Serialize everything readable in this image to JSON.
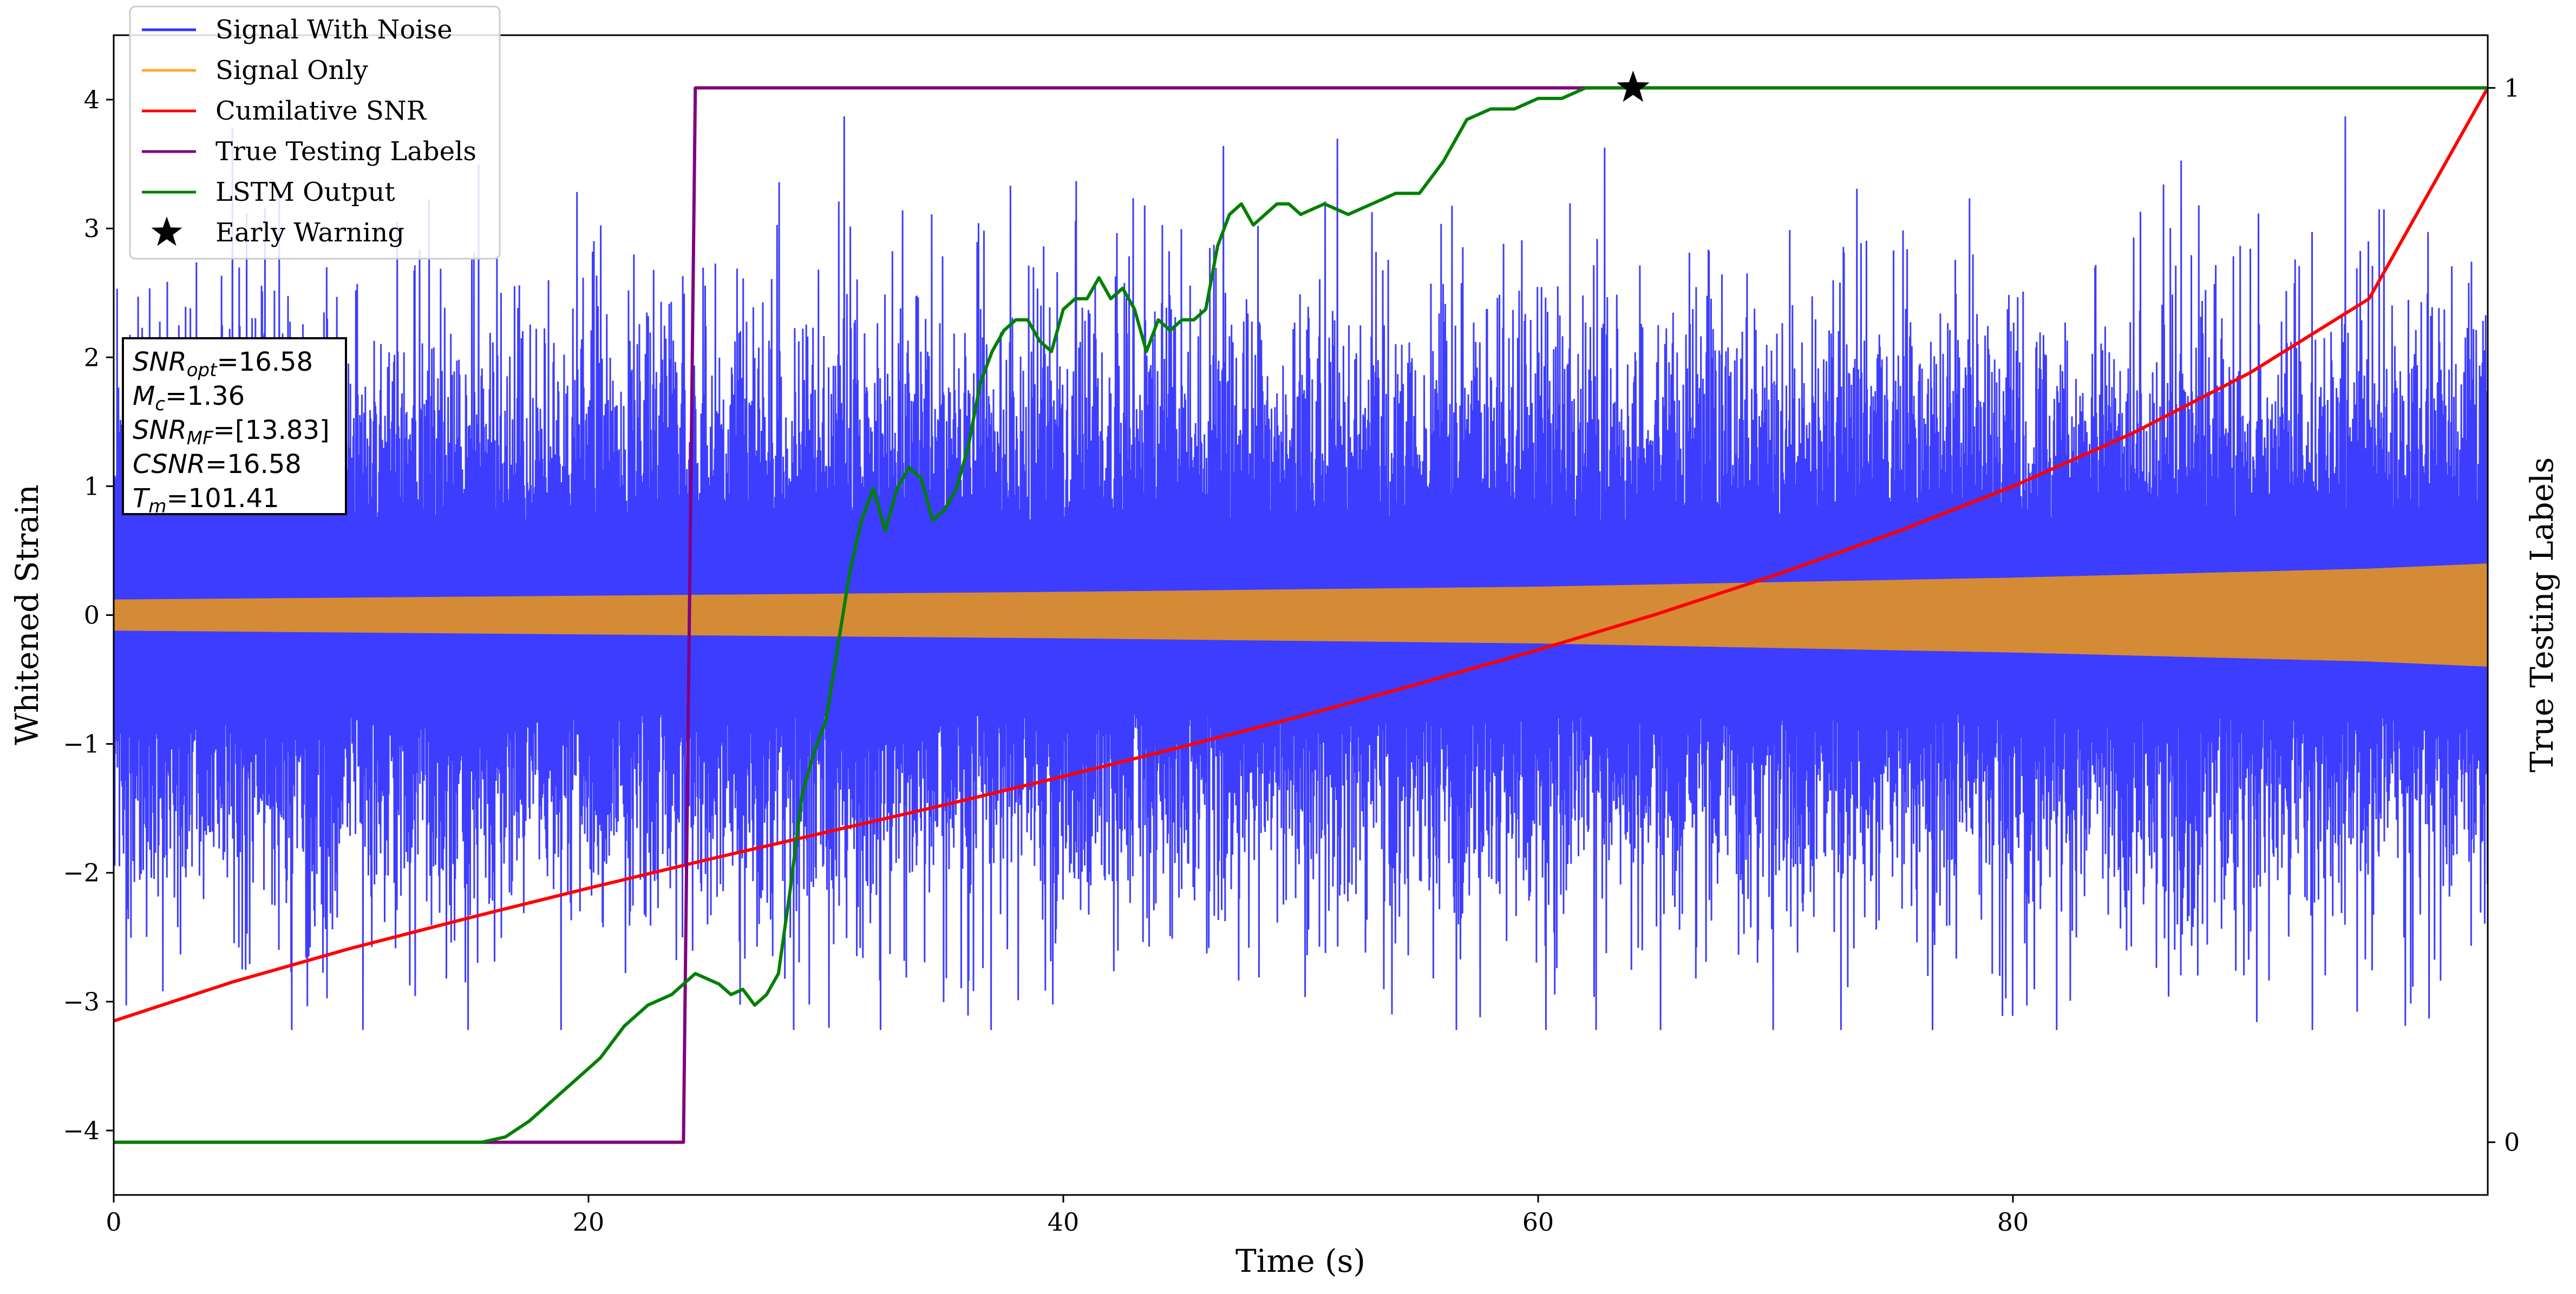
{
  "chart_data": {
    "type": "line",
    "title": "",
    "xlabel": "Time (s)",
    "ylabel": "Whitened Strain",
    "y2label": "True Testing Labels",
    "xlim": [
      0,
      100
    ],
    "ylim": [
      -4.5,
      4.5
    ],
    "y2lim": [
      -0.05,
      1.05
    ],
    "xticks": [
      0,
      20,
      40,
      60,
      80
    ],
    "xtick_labels": [
      "0",
      "20",
      "40",
      "60",
      "80"
    ],
    "yticks": [
      -4,
      -3,
      -2,
      -1,
      0,
      1,
      2,
      3,
      4
    ],
    "ytick_labels": [
      "−4",
      "−3",
      "−2",
      "−1",
      "0",
      "1",
      "2",
      "3",
      "4"
    ],
    "y2ticks": [
      0,
      1
    ],
    "y2tick_labels": [
      "0",
      "1"
    ],
    "grid": false,
    "legend_position": "top-left",
    "legend": [
      {
        "label": "Signal With Noise",
        "color": "#3333ff",
        "marker": "line"
      },
      {
        "label": "Signal Only",
        "color": "#ffaa33",
        "marker": "line"
      },
      {
        "label": "Cumilative SNR",
        "color": "#ff0000",
        "marker": "line"
      },
      {
        "label": "True Testing Labels",
        "color": "#800080",
        "marker": "line"
      },
      {
        "label": "LSTM Output",
        "color": "#008000",
        "marker": "line"
      },
      {
        "label": "Early Warning",
        "color": "#000000",
        "marker": "star"
      }
    ],
    "annotation": {
      "lines": [
        {
          "sym": "SNR",
          "sub": "opt",
          "val": "=16.58"
        },
        {
          "sym": "M",
          "sub": "c",
          "val": "=1.36"
        },
        {
          "sym": "SNR",
          "sub": "MF",
          "val": "=[13.83]"
        },
        {
          "sym": "CSNR",
          "sub": "",
          "val": "=16.58"
        },
        {
          "sym": "T",
          "sub": "m",
          "val": "=101.41"
        }
      ]
    },
    "series": [
      {
        "name": "Signal With Noise",
        "axis": "left",
        "style": "noise",
        "color": "#3333ff",
        "x_range": [
          0,
          100
        ],
        "typical_amplitude": 1.6,
        "min": -3.22,
        "max": 3.87
      },
      {
        "name": "Signal Only",
        "axis": "left",
        "style": "envelope",
        "color": "#d58a35",
        "x": [
          0,
          20,
          40,
          60,
          80,
          95,
          100
        ],
        "upper": [
          0.12,
          0.15,
          0.18,
          0.22,
          0.29,
          0.36,
          0.4
        ],
        "lower": [
          -0.12,
          -0.15,
          -0.18,
          -0.22,
          -0.29,
          -0.36,
          -0.4
        ]
      },
      {
        "name": "Cumilative SNR",
        "axis": "right",
        "color": "#ff0000",
        "x": [
          0,
          5,
          10,
          15,
          20,
          25,
          30,
          35,
          40,
          45,
          50,
          55,
          60,
          65,
          70,
          75,
          80,
          85,
          90,
          95,
          100
        ],
        "y": [
          0.115,
          0.152,
          0.184,
          0.213,
          0.241,
          0.268,
          0.294,
          0.32,
          0.347,
          0.375,
          0.404,
          0.435,
          0.467,
          0.501,
          0.538,
          0.578,
          0.622,
          0.672,
          0.73,
          0.8,
          1.0
        ]
      },
      {
        "name": "True Testing Labels",
        "axis": "right",
        "color": "#800080",
        "x": [
          0,
          24.0,
          24.5,
          100
        ],
        "y": [
          0,
          0,
          1,
          1
        ]
      },
      {
        "name": "LSTM Output",
        "axis": "right",
        "color": "#008000",
        "x": [
          0,
          15.5,
          16.5,
          17.5,
          18.5,
          19.5,
          20.5,
          21.5,
          22.5,
          23.5,
          24.0,
          24.5,
          25.5,
          26.0,
          26.5,
          27.0,
          27.5,
          28.0,
          28.5,
          29.0,
          29.5,
          30.0,
          30.5,
          31.0,
          31.5,
          32.0,
          32.5,
          33.0,
          33.5,
          34.0,
          34.5,
          35.0,
          35.5,
          36.0,
          36.5,
          37.0,
          37.5,
          38.0,
          38.5,
          39.0,
          39.5,
          40.0,
          40.5,
          41.0,
          41.5,
          42.0,
          42.5,
          43.0,
          43.5,
          44.0,
          44.5,
          45.0,
          45.5,
          46.0,
          46.5,
          47.0,
          47.5,
          48.0,
          48.5,
          49.0,
          49.5,
          50.0,
          51.0,
          52.0,
          53.0,
          54.0,
          55.0,
          56.0,
          57.0,
          58.0,
          59.0,
          60.0,
          61.0,
          62.0,
          63.0,
          64.0,
          65.0,
          66.0,
          67.0,
          68.0,
          70.0,
          72.0,
          80.0,
          90.0,
          100.0
        ],
        "y": [
          0,
          0.0,
          0.005,
          0.02,
          0.04,
          0.06,
          0.08,
          0.11,
          0.13,
          0.14,
          0.15,
          0.16,
          0.15,
          0.14,
          0.145,
          0.13,
          0.14,
          0.16,
          0.24,
          0.33,
          0.37,
          0.4,
          0.47,
          0.54,
          0.59,
          0.62,
          0.58,
          0.62,
          0.64,
          0.63,
          0.59,
          0.6,
          0.62,
          0.66,
          0.72,
          0.75,
          0.77,
          0.78,
          0.78,
          0.76,
          0.75,
          0.79,
          0.8,
          0.8,
          0.82,
          0.8,
          0.81,
          0.79,
          0.75,
          0.78,
          0.77,
          0.78,
          0.78,
          0.79,
          0.85,
          0.88,
          0.89,
          0.87,
          0.88,
          0.89,
          0.89,
          0.88,
          0.89,
          0.88,
          0.89,
          0.9,
          0.9,
          0.93,
          0.97,
          0.98,
          0.98,
          0.99,
          0.99,
          1.0,
          1.0,
          1.0,
          1.0,
          1.0,
          1.0,
          1.0,
          1.0,
          1.0,
          1.0,
          1.0,
          1.0
        ]
      },
      {
        "name": "Early Warning",
        "axis": "right",
        "style": "marker",
        "color": "#000000",
        "x": [
          64.0
        ],
        "y": [
          1.0
        ]
      }
    ]
  }
}
